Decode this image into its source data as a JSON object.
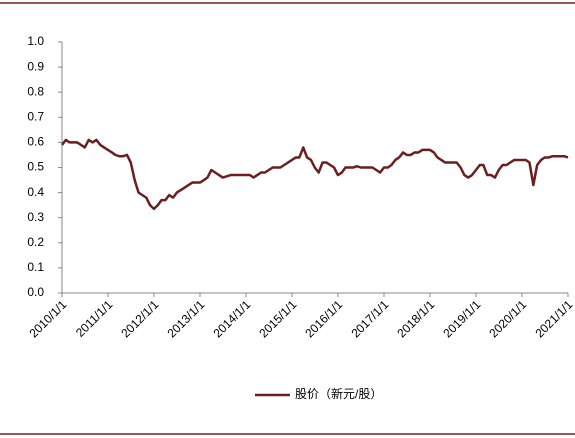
{
  "chart_data": {
    "type": "line",
    "x": [
      "2010/1/1",
      "2010/2/1",
      "2010/3/1",
      "2010/4/1",
      "2010/5/1",
      "2010/6/1",
      "2010/7/1",
      "2010/8/1",
      "2010/9/1",
      "2010/10/1",
      "2010/11/1",
      "2010/12/1",
      "2011/1/1",
      "2011/2/1",
      "2011/3/1",
      "2011/4/1",
      "2011/5/1",
      "2011/6/1",
      "2011/7/1",
      "2011/8/1",
      "2011/9/1",
      "2011/10/1",
      "2011/11/1",
      "2011/12/1",
      "2012/1/1",
      "2012/2/1",
      "2012/3/1",
      "2012/4/1",
      "2012/5/1",
      "2012/6/1",
      "2012/7/1",
      "2012/8/1",
      "2012/9/1",
      "2012/10/1",
      "2012/11/1",
      "2012/12/1",
      "2013/1/1",
      "2013/2/1",
      "2013/3/1",
      "2013/4/1",
      "2013/5/1",
      "2013/6/1",
      "2013/7/1",
      "2013/8/1",
      "2013/9/1",
      "2013/10/1",
      "2013/11/1",
      "2013/12/1",
      "2014/1/1",
      "2014/2/1",
      "2014/3/1",
      "2014/4/1",
      "2014/5/1",
      "2014/6/1",
      "2014/7/1",
      "2014/8/1",
      "2014/9/1",
      "2014/10/1",
      "2014/11/1",
      "2014/12/1",
      "2015/1/1",
      "2015/2/1",
      "2015/3/1",
      "2015/4/1",
      "2015/5/1",
      "2015/6/1",
      "2015/7/1",
      "2015/8/1",
      "2015/9/1",
      "2015/10/1",
      "2015/11/1",
      "2015/12/1",
      "2016/1/1",
      "2016/2/1",
      "2016/3/1",
      "2016/4/1",
      "2016/5/1",
      "2016/6/1",
      "2016/7/1",
      "2016/8/1",
      "2016/9/1",
      "2016/10/1",
      "2016/11/1",
      "2016/12/1",
      "2017/1/1",
      "2017/2/1",
      "2017/3/1",
      "2017/4/1",
      "2017/5/1",
      "2017/6/1",
      "2017/7/1",
      "2017/8/1",
      "2017/9/1",
      "2017/10/1",
      "2017/11/1",
      "2017/12/1",
      "2018/1/1",
      "2018/2/1",
      "2018/3/1",
      "2018/4/1",
      "2018/5/1",
      "2018/6/1",
      "2018/7/1",
      "2018/8/1",
      "2018/9/1",
      "2018/10/1",
      "2018/11/1",
      "2018/12/1",
      "2019/1/1",
      "2019/2/1",
      "2019/3/1",
      "2019/4/1",
      "2019/5/1",
      "2019/6/1",
      "2019/7/1",
      "2019/8/1",
      "2019/9/1",
      "2019/10/1",
      "2019/11/1",
      "2019/12/1",
      "2020/1/1",
      "2020/2/1",
      "2020/3/1",
      "2020/4/1",
      "2020/5/1",
      "2020/6/1",
      "2020/7/1",
      "2020/8/1",
      "2020/9/1",
      "2020/10/1",
      "2020/11/1",
      "2020/12/1",
      "2021/1/1"
    ],
    "series": [
      {
        "name": "股价（新元/股）",
        "color": "#6b1f1f",
        "values": [
          0.59,
          0.61,
          0.6,
          0.6,
          0.6,
          0.59,
          0.58,
          0.61,
          0.6,
          0.61,
          0.59,
          0.58,
          0.57,
          0.56,
          0.55,
          0.545,
          0.545,
          0.55,
          0.52,
          0.45,
          0.4,
          0.39,
          0.38,
          0.35,
          0.335,
          0.35,
          0.37,
          0.37,
          0.39,
          0.38,
          0.4,
          0.41,
          0.42,
          0.43,
          0.44,
          0.44,
          0.44,
          0.45,
          0.46,
          0.49,
          0.48,
          0.47,
          0.46,
          0.465,
          0.47,
          0.47,
          0.47,
          0.47,
          0.47,
          0.47,
          0.46,
          0.47,
          0.48,
          0.48,
          0.49,
          0.5,
          0.5,
          0.5,
          0.51,
          0.52,
          0.53,
          0.54,
          0.54,
          0.58,
          0.54,
          0.53,
          0.5,
          0.48,
          0.52,
          0.52,
          0.51,
          0.5,
          0.47,
          0.48,
          0.5,
          0.5,
          0.5,
          0.505,
          0.5,
          0.5,
          0.5,
          0.5,
          0.49,
          0.48,
          0.5,
          0.5,
          0.51,
          0.53,
          0.54,
          0.56,
          0.55,
          0.55,
          0.56,
          0.56,
          0.57,
          0.57,
          0.57,
          0.56,
          0.54,
          0.53,
          0.52,
          0.52,
          0.52,
          0.52,
          0.5,
          0.47,
          0.46,
          0.47,
          0.49,
          0.51,
          0.51,
          0.47,
          0.47,
          0.46,
          0.49,
          0.51,
          0.51,
          0.52,
          0.53,
          0.53,
          0.53,
          0.53,
          0.52,
          0.43,
          0.51,
          0.53,
          0.54,
          0.54,
          0.545,
          0.545,
          0.545,
          0.545,
          0.54
        ]
      }
    ],
    "xlim": [
      "2010/1/1",
      "2021/1/1"
    ],
    "xticks": [
      "2010/1/1",
      "2011/1/1",
      "2012/1/1",
      "2013/1/1",
      "2014/1/1",
      "2015/1/1",
      "2016/1/1",
      "2017/1/1",
      "2018/1/1",
      "2019/1/1",
      "2020/1/1",
      "2021/1/1"
    ],
    "ylim": [
      0,
      1
    ],
    "yticks": [
      {
        "value": 0,
        "label": "0.0"
      },
      0.1,
      0.2,
      0.3,
      0.4,
      0.5,
      0.6,
      0.7,
      0.8,
      0.9,
      {
        "value": 1,
        "label": "1.0"
      }
    ],
    "legend": "bottom"
  }
}
